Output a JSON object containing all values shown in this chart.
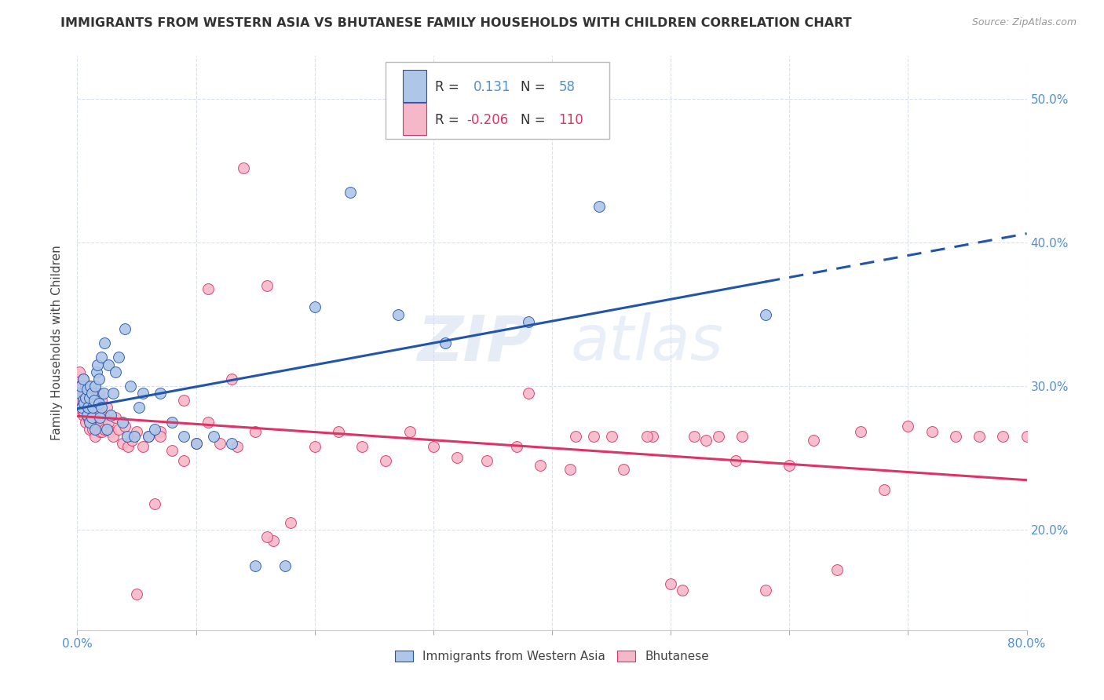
{
  "title": "IMMIGRANTS FROM WESTERN ASIA VS BHUTANESE FAMILY HOUSEHOLDS WITH CHILDREN CORRELATION CHART",
  "source": "Source: ZipAtlas.com",
  "ylabel": "Family Households with Children",
  "legend_labels": [
    "Immigrants from Western Asia",
    "Bhutanese"
  ],
  "r_blue": 0.131,
  "n_blue": 58,
  "r_pink": -0.206,
  "n_pink": 110,
  "blue_color": "#aec6e8",
  "pink_color": "#f5b8c8",
  "blue_line_color": "#2255aa",
  "pink_line_color": "#dd3366",
  "xlim": [
    0.0,
    0.8
  ],
  "ylim": [
    0.13,
    0.53
  ],
  "xtick_vals": [
    0.0,
    0.1,
    0.2,
    0.3,
    0.4,
    0.5,
    0.6,
    0.7,
    0.8
  ],
  "ytick_vals": [
    0.2,
    0.3,
    0.4,
    0.5
  ],
  "blue_scatter_x": [
    0.002,
    0.003,
    0.004,
    0.005,
    0.005,
    0.006,
    0.007,
    0.008,
    0.008,
    0.009,
    0.01,
    0.01,
    0.011,
    0.012,
    0.012,
    0.013,
    0.014,
    0.015,
    0.015,
    0.016,
    0.017,
    0.018,
    0.018,
    0.019,
    0.02,
    0.02,
    0.022,
    0.023,
    0.025,
    0.026,
    0.028,
    0.03,
    0.032,
    0.035,
    0.038,
    0.04,
    0.042,
    0.045,
    0.048,
    0.052,
    0.055,
    0.06,
    0.065,
    0.07,
    0.08,
    0.09,
    0.1,
    0.115,
    0.13,
    0.15,
    0.175,
    0.2,
    0.23,
    0.27,
    0.31,
    0.38,
    0.44,
    0.58
  ],
  "blue_scatter_y": [
    0.295,
    0.3,
    0.285,
    0.29,
    0.305,
    0.288,
    0.292,
    0.28,
    0.298,
    0.285,
    0.275,
    0.292,
    0.3,
    0.278,
    0.295,
    0.285,
    0.29,
    0.27,
    0.3,
    0.31,
    0.315,
    0.288,
    0.305,
    0.278,
    0.285,
    0.32,
    0.295,
    0.33,
    0.27,
    0.315,
    0.28,
    0.295,
    0.31,
    0.32,
    0.275,
    0.34,
    0.265,
    0.3,
    0.265,
    0.285,
    0.295,
    0.265,
    0.27,
    0.295,
    0.275,
    0.265,
    0.26,
    0.265,
    0.26,
    0.175,
    0.175,
    0.355,
    0.435,
    0.35,
    0.33,
    0.345,
    0.425,
    0.35
  ],
  "pink_scatter_x": [
    0.001,
    0.002,
    0.002,
    0.003,
    0.003,
    0.004,
    0.004,
    0.005,
    0.005,
    0.005,
    0.006,
    0.006,
    0.007,
    0.007,
    0.008,
    0.008,
    0.009,
    0.009,
    0.01,
    0.01,
    0.01,
    0.011,
    0.011,
    0.012,
    0.012,
    0.013,
    0.013,
    0.014,
    0.015,
    0.015,
    0.016,
    0.016,
    0.017,
    0.018,
    0.018,
    0.019,
    0.02,
    0.02,
    0.021,
    0.022,
    0.023,
    0.025,
    0.026,
    0.028,
    0.03,
    0.032,
    0.035,
    0.038,
    0.04,
    0.043,
    0.046,
    0.05,
    0.055,
    0.06,
    0.065,
    0.07,
    0.08,
    0.09,
    0.1,
    0.11,
    0.12,
    0.135,
    0.15,
    0.165,
    0.18,
    0.2,
    0.22,
    0.24,
    0.26,
    0.28,
    0.3,
    0.32,
    0.345,
    0.37,
    0.39,
    0.415,
    0.435,
    0.46,
    0.485,
    0.51,
    0.53,
    0.555,
    0.58,
    0.6,
    0.62,
    0.64,
    0.66,
    0.68,
    0.7,
    0.72,
    0.74,
    0.76,
    0.78,
    0.8,
    0.38,
    0.42,
    0.45,
    0.48,
    0.5,
    0.52,
    0.54,
    0.56,
    0.14,
    0.16,
    0.05,
    0.07,
    0.09,
    0.11,
    0.13,
    0.16
  ],
  "pink_scatter_y": [
    0.285,
    0.3,
    0.31,
    0.29,
    0.295,
    0.285,
    0.298,
    0.28,
    0.292,
    0.305,
    0.282,
    0.295,
    0.275,
    0.3,
    0.285,
    0.295,
    0.278,
    0.29,
    0.27,
    0.285,
    0.3,
    0.275,
    0.29,
    0.28,
    0.295,
    0.27,
    0.285,
    0.278,
    0.265,
    0.285,
    0.275,
    0.295,
    0.27,
    0.28,
    0.295,
    0.268,
    0.275,
    0.29,
    0.268,
    0.28,
    0.27,
    0.285,
    0.275,
    0.268,
    0.265,
    0.278,
    0.27,
    0.26,
    0.272,
    0.258,
    0.262,
    0.268,
    0.258,
    0.265,
    0.218,
    0.268,
    0.255,
    0.248,
    0.26,
    0.275,
    0.26,
    0.258,
    0.268,
    0.192,
    0.205,
    0.258,
    0.268,
    0.258,
    0.248,
    0.268,
    0.258,
    0.25,
    0.248,
    0.258,
    0.245,
    0.242,
    0.265,
    0.242,
    0.265,
    0.158,
    0.262,
    0.248,
    0.158,
    0.245,
    0.262,
    0.172,
    0.268,
    0.228,
    0.272,
    0.268,
    0.265,
    0.265,
    0.265,
    0.265,
    0.295,
    0.265,
    0.265,
    0.265,
    0.162,
    0.265,
    0.265,
    0.265,
    0.452,
    0.37,
    0.155,
    0.265,
    0.29,
    0.368,
    0.305,
    0.195
  ]
}
